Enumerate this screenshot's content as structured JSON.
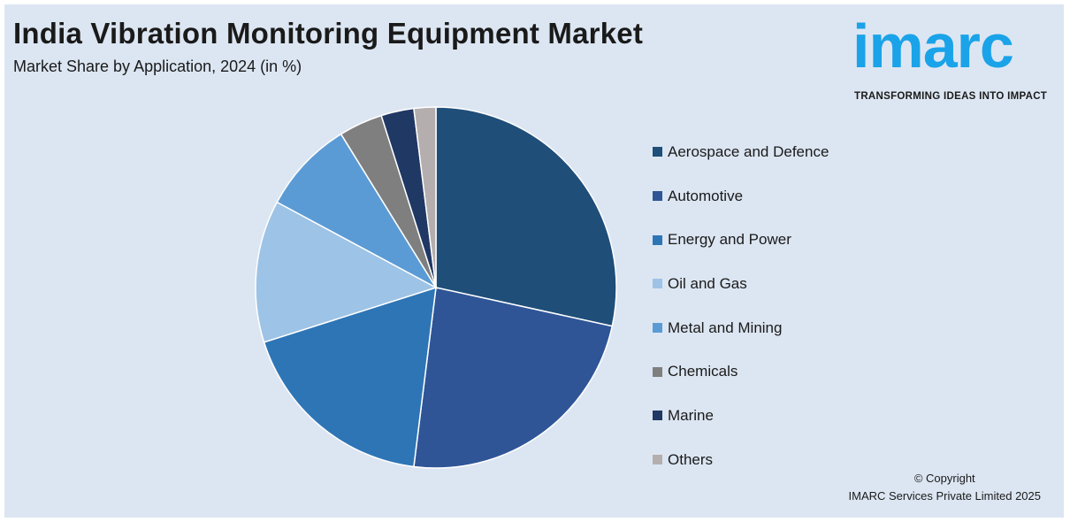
{
  "header": {
    "title": "India Vibration Monitoring Equipment Market",
    "subtitle": "Market Share by Application, 2024 (in %)"
  },
  "logo": {
    "wordmark": "imarc",
    "tagline": "TRANSFORMING IDEAS INTO IMPACT",
    "color": "#1aa3e8"
  },
  "chart_data": {
    "type": "pie",
    "title": "India Vibration Monitoring Equipment Market",
    "subtitle": "Market Share by Application, 2024 (in %)",
    "start_angle_deg": 0,
    "direction": "clockwise",
    "legend_position": "right",
    "slices": [
      {
        "label": "Aerospace and Defence",
        "value": 29.0,
        "color": "#1f4e79"
      },
      {
        "label": "Automotive",
        "value": 24.0,
        "color": "#2f5597"
      },
      {
        "label": "Energy and Power",
        "value": 18.5,
        "color": "#2e75b6"
      },
      {
        "label": "Oil and Gas",
        "value": 13.0,
        "color": "#9dc3e6"
      },
      {
        "label": "Metal and Mining",
        "value": 8.5,
        "color": "#5b9bd5"
      },
      {
        "label": "Chemicals",
        "value": 4.0,
        "color": "#7f7f7f"
      },
      {
        "label": "Marine",
        "value": 3.0,
        "color": "#203864"
      },
      {
        "label": "Others",
        "value": 2.0,
        "color": "#b4aeae"
      }
    ]
  },
  "footer": {
    "copyright_line1": "© Copyright",
    "copyright_line2": "IMARC Services Private Limited 2025"
  }
}
